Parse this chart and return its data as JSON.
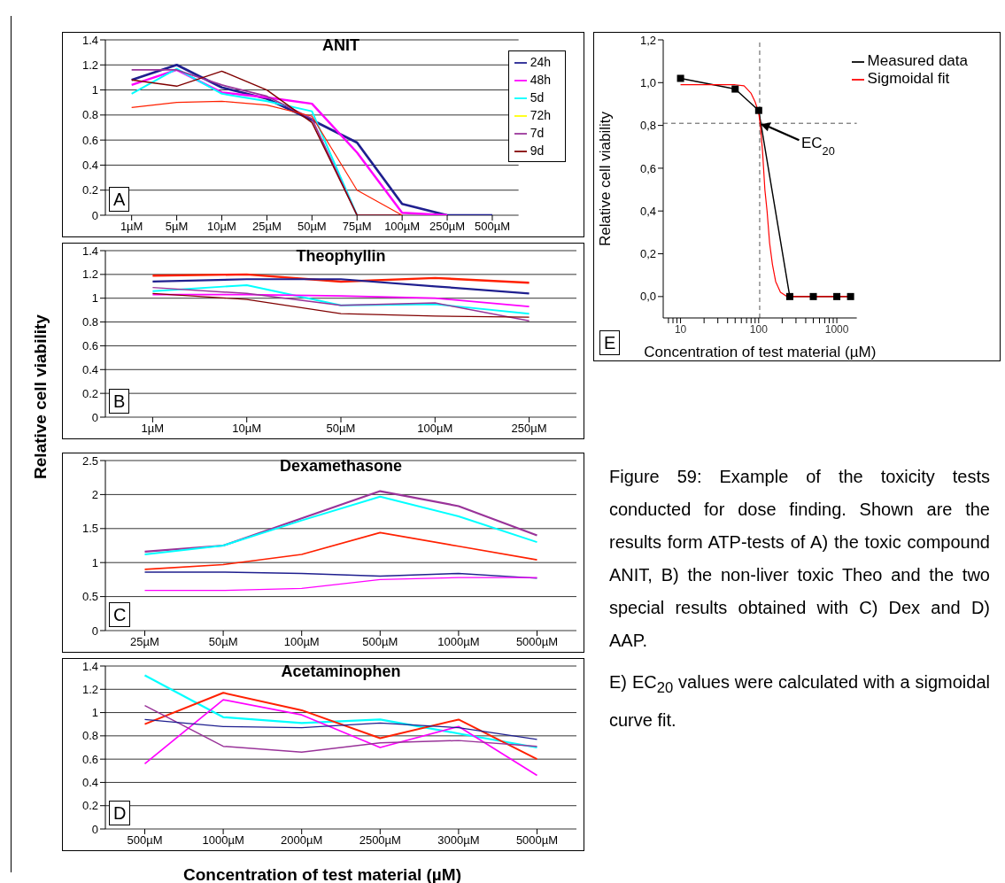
{
  "chart_data": [
    {
      "type": "line",
      "title": "ANIT",
      "categories": [
        "1µM",
        "5µM",
        "10µM",
        "25µM",
        "50µM",
        "75µM",
        "100µM",
        "250µM",
        "500µM"
      ],
      "ylim": [
        0,
        1.4
      ],
      "yticks": [
        0,
        0.2,
        0.4,
        0.6,
        0.8,
        1,
        1.2,
        1.4
      ],
      "grid": "y",
      "legend": "top right",
      "marker": "none",
      "annotations": [
        "A"
      ],
      "series": [
        {
          "name": "24h",
          "color": "#1f1f8f",
          "values": [
            1.08,
            1.2,
            1.02,
            0.93,
            0.76,
            0.58,
            0.09,
            0,
            0
          ]
        },
        {
          "name": "48h",
          "color": "#ff00ff",
          "values": [
            1.04,
            1.16,
            0.98,
            0.94,
            0.89,
            0.5,
            0.02,
            0,
            null
          ]
        },
        {
          "name": "72h",
          "color": "#ffff00",
          "values": [
            null,
            null,
            null,
            null,
            null,
            null,
            null,
            null,
            null
          ]
        },
        {
          "name": "5d",
          "color": "#00ffff",
          "values": [
            0.97,
            1.17,
            0.97,
            0.91,
            0.83,
            0,
            0,
            null,
            null
          ]
        },
        {
          "name": "7d",
          "color": "#993399",
          "values": [
            1.16,
            1.16,
            1.04,
            0.95,
            0.77,
            0,
            0,
            null,
            null
          ]
        },
        {
          "name": "9d",
          "color": "#800000",
          "values": [
            1.08,
            1.03,
            1.15,
            1.0,
            0.74,
            0,
            0,
            null,
            null
          ]
        },
        {
          "color": "#ff2000",
          "values": [
            0.86,
            0.9,
            0.91,
            0.88,
            0.79,
            0.2,
            0,
            null,
            null
          ]
        }
      ]
    },
    {
      "type": "line",
      "title": "Theophyllin",
      "ylabel": "Relative cell viability",
      "categories": [
        "1µM",
        "10µM",
        "50µM",
        "100µM",
        "250µM"
      ],
      "ylim": [
        0,
        1.4
      ],
      "yticks": [
        0,
        0.2,
        0.4,
        0.6,
        0.8,
        1,
        1.2,
        1.4
      ],
      "grid": "y",
      "marker": "none",
      "annotations": [
        "B"
      ],
      "series": [
        {
          "color": "#ff2000",
          "values": [
            1.19,
            1.2,
            1.14,
            1.17,
            1.13
          ]
        },
        {
          "color": "#1f1f8f",
          "values": [
            1.14,
            1.16,
            1.16,
            1.1,
            1.04
          ]
        },
        {
          "color": "#00ffff",
          "values": [
            1.06,
            1.11,
            0.94,
            0.95,
            0.87
          ]
        },
        {
          "color": "#ff00ff",
          "values": [
            1.03,
            1.03,
            1.02,
            1.0,
            0.93
          ]
        },
        {
          "color": "#993399",
          "values": [
            1.09,
            1.04,
            0.94,
            0.96,
            0.81
          ]
        },
        {
          "color": "#800000",
          "values": [
            1.04,
            0.99,
            0.87,
            0.85,
            0.84
          ]
        }
      ]
    },
    {
      "type": "line",
      "title": "Dexamethasone",
      "categories": [
        "25µM",
        "50µM",
        "100µM",
        "500µM",
        "1000µM",
        "5000µM"
      ],
      "ylim": [
        0,
        2.5
      ],
      "yticks": [
        0,
        0.5,
        1,
        1.5,
        2,
        2.5
      ],
      "grid": "y",
      "marker": "none",
      "annotations": [
        "C"
      ],
      "series": [
        {
          "color": "#993399",
          "values": [
            1.16,
            1.25,
            1.65,
            2.05,
            1.83,
            1.4
          ]
        },
        {
          "color": "#00ffff",
          "values": [
            1.12,
            1.25,
            1.62,
            1.97,
            1.68,
            1.3
          ]
        },
        {
          "color": "#ff2000",
          "values": [
            0.9,
            0.97,
            1.12,
            1.44,
            1.24,
            1.04
          ]
        },
        {
          "color": "#1f1f8f",
          "values": [
            0.86,
            0.86,
            0.84,
            0.8,
            0.84,
            0.77
          ]
        },
        {
          "color": "#ff00ff",
          "values": [
            0.59,
            0.59,
            0.62,
            0.75,
            0.78,
            0.78
          ]
        }
      ]
    },
    {
      "type": "line",
      "title": "Acetaminophen",
      "xlabel": "Concentration of test material (µM)",
      "categories": [
        "500µM",
        "1000µM",
        "2000µM",
        "2500µM",
        "3000µM",
        "5000µM"
      ],
      "ylim": [
        0,
        1.4
      ],
      "yticks": [
        0,
        0.2,
        0.4,
        0.6,
        0.8,
        1,
        1.2,
        1.4
      ],
      "grid": "y",
      "marker": "none",
      "annotations": [
        "D"
      ],
      "series": [
        {
          "color": "#00ffff",
          "values": [
            1.32,
            0.96,
            0.91,
            0.94,
            0.82,
            0.7
          ]
        },
        {
          "color": "#ff2000",
          "values": [
            0.9,
            1.17,
            1.02,
            0.78,
            0.94,
            0.6
          ]
        },
        {
          "color": "#ff00ff",
          "values": [
            0.56,
            1.11,
            0.98,
            0.7,
            0.88,
            0.46
          ]
        },
        {
          "color": "#993399",
          "values": [
            1.06,
            0.71,
            0.66,
            0.74,
            0.76,
            0.71
          ]
        },
        {
          "color": "#1f1f8f",
          "values": [
            0.94,
            0.88,
            0.87,
            0.91,
            0.87,
            0.77
          ]
        }
      ]
    },
    {
      "type": "line",
      "xlabel": "Concentration of test material (µM)",
      "ylabel": "Relative cell viability",
      "log": "x",
      "xlim": [
        6,
        1800
      ],
      "xticks": [
        {
          "value": 7,
          "label": null
        },
        {
          "value": 8,
          "label": null
        },
        {
          "value": 9,
          "label": null
        },
        10,
        {
          "value": 20,
          "label": null
        },
        {
          "value": 30,
          "label": null
        },
        {
          "value": 40,
          "label": null
        },
        {
          "value": 50,
          "label": null
        },
        {
          "value": 60,
          "label": null
        },
        {
          "value": 70,
          "label": null
        },
        {
          "value": 80,
          "label": null
        },
        {
          "value": 90,
          "label": null
        },
        100,
        {
          "value": 200,
          "label": null
        },
        {
          "value": 300,
          "label": null
        },
        {
          "value": 400,
          "label": null
        },
        {
          "value": 500,
          "label": null
        },
        {
          "value": 600,
          "label": null
        },
        {
          "value": 700,
          "label": null
        },
        {
          "value": 800,
          "label": null
        },
        {
          "value": 900,
          "label": null
        },
        1000
      ],
      "ylim": [
        -0.1,
        1.2
      ],
      "yticks": [
        {
          "value": 0,
          "label": "0,0"
        },
        {
          "value": 0.2,
          "label": "0,2"
        },
        {
          "value": 0.4,
          "label": "0,4"
        },
        {
          "value": 0.6,
          "label": "0,6"
        },
        {
          "value": 0.8,
          "label": "0,8"
        },
        {
          "value": 1,
          "label": "1,0"
        },
        {
          "value": 1.2,
          "label": "1,2"
        }
      ],
      "grid": false,
      "legend": "top right",
      "annotations": [
        "E",
        {
          "text": "EC$_{20}$",
          "x": 103,
          "y": 0.81
        }
      ],
      "ref_lines": [
        {
          "axis": "y",
          "value": 0.81,
          "line_style": "dashed",
          "color": "#555555"
        },
        {
          "axis": "x",
          "value": 103,
          "line_style": "dashed",
          "color": "#555555"
        }
      ],
      "series": [
        {
          "name": "Measured data",
          "color": "#000000",
          "marker": "square",
          "x": [
            10,
            50,
            100,
            250,
            500,
            1000,
            1500
          ],
          "values": [
            1.02,
            0.97,
            0.87,
            0,
            0,
            0,
            0
          ]
        },
        {
          "name": "Sigmoidal fit",
          "color": "#ff0000",
          "marker": "none",
          "x": [
            10,
            50,
            65,
            80,
            90,
            100,
            105,
            112,
            120,
            128,
            138,
            150,
            165,
            190,
            230,
            1500
          ],
          "values": [
            0.99,
            0.99,
            0.985,
            0.95,
            0.91,
            0.86,
            0.8,
            0.68,
            0.5,
            0.4,
            0.25,
            0.15,
            0.07,
            0.02,
            0,
            0
          ]
        }
      ]
    },
    {
      "type": "other",
      "annotations": [
        "Figure 59: Example of the toxicity tests conducted for dose finding. Shown are the results form ATP-tests of A) the toxic compound ANIT, B) the non-liver toxic Theo and the two special results obtained with C) Dex and D) AAP.",
        "E) EC$_{20}$ values were calculated with a sigmoidal curve fit."
      ]
    }
  ]
}
